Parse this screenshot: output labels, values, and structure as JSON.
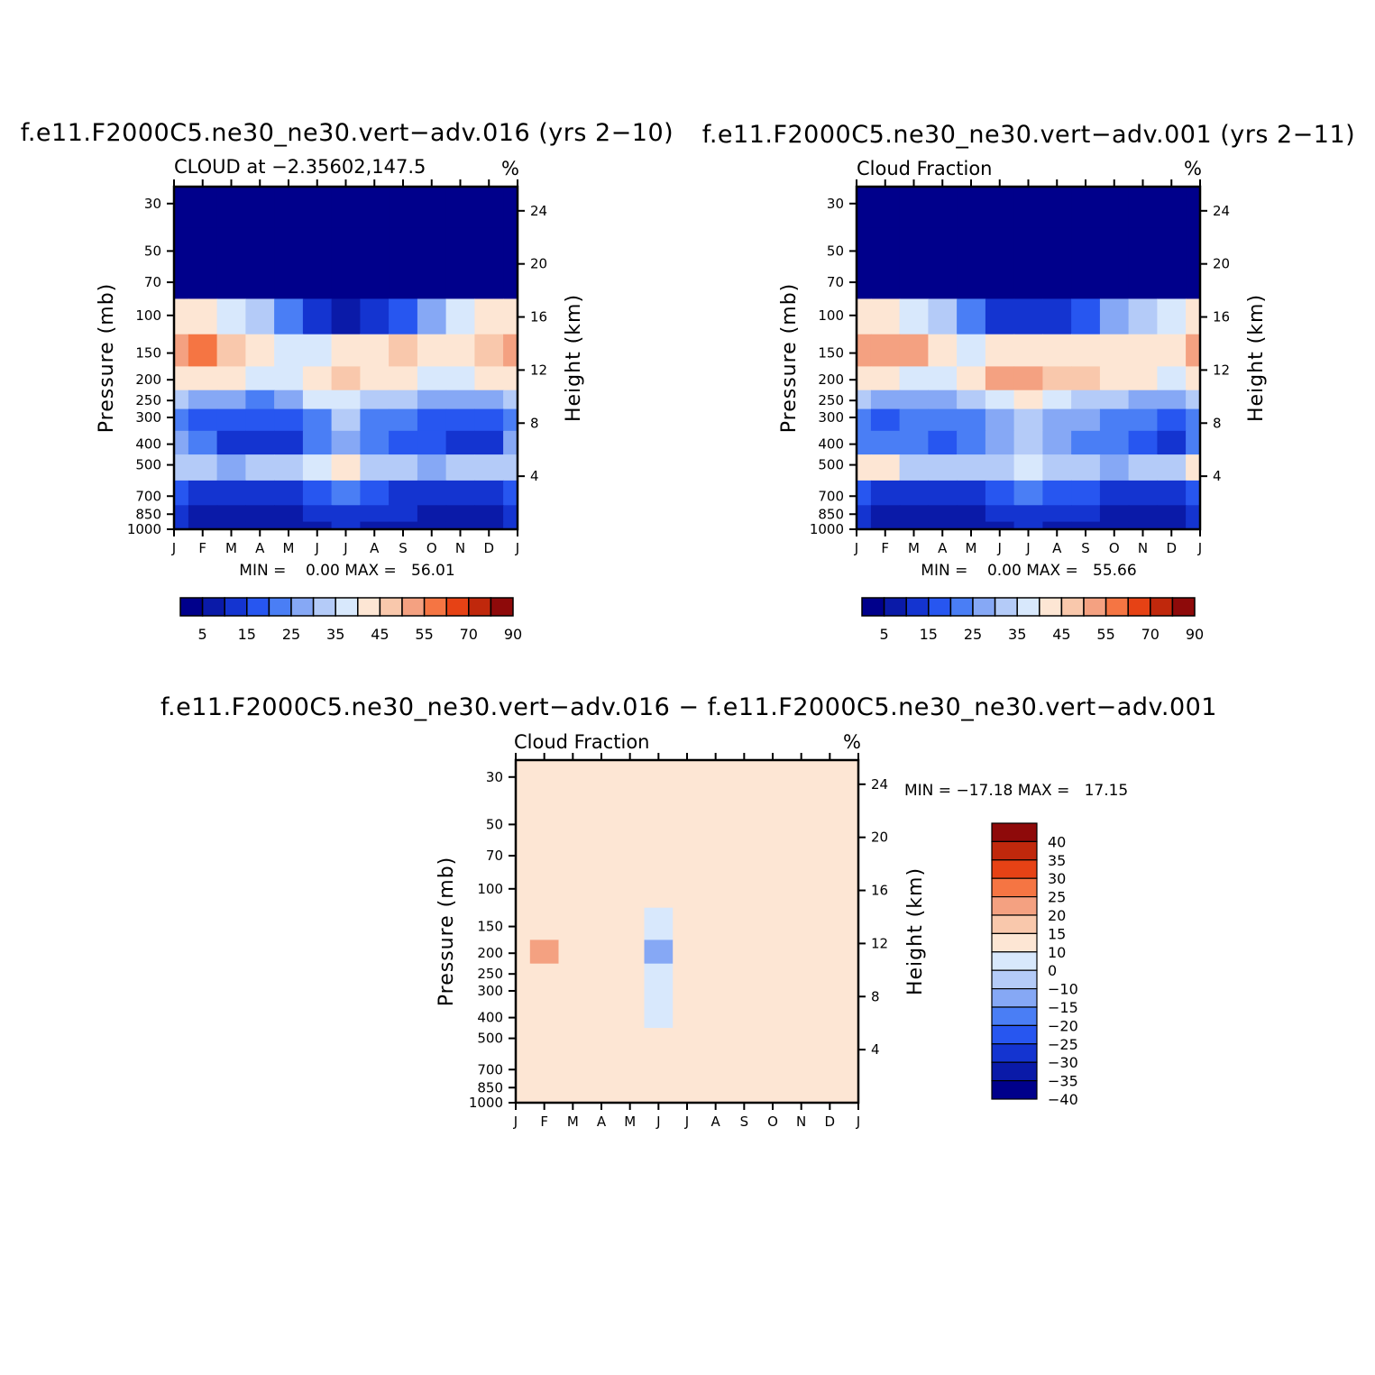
{
  "panels": [
    {
      "title": "f.e11.F2000C5.ne30_ne30.vert−adv.016 (yrs 2−10)",
      "left_string": "CLOUD at −2.35602,147.5",
      "right_string": "%",
      "minmax": "MIN =    0.00 MAX =   56.01"
    },
    {
      "title": "f.e11.F2000C5.ne30_ne30.vert−adv.001 (yrs 2−11)",
      "left_string": "Cloud Fraction",
      "right_string": "%",
      "minmax": "MIN =    0.00 MAX =   55.66"
    },
    {
      "title": "f.e11.F2000C5.ne30_ne30.vert−adv.016 − f.e11.F2000C5.ne30_ne30.vert−adv.001",
      "left_string": "Cloud Fraction",
      "right_string": "%",
      "minmax": "MIN = −17.18 MAX =   17.15"
    }
  ],
  "colors": {
    "abs_scale": [
      "#00008b",
      "#0a1aa8",
      "#1434d0",
      "#2756f0",
      "#4a7ef5",
      "#86a8f5",
      "#b4cbf8",
      "#d8e8fc",
      "#fde6d4",
      "#f9c8ac",
      "#f4a181",
      "#f57543",
      "#e64215",
      "#c0280c",
      "#8e0a0a"
    ],
    "diff_scale": [
      "#00008b",
      "#0a1aa8",
      "#1434d0",
      "#2756f0",
      "#4a7ef5",
      "#86a8f5",
      "#b4cbf8",
      "#d8e8fc",
      "#fde6d4",
      "#f9c8ac",
      "#f4a181",
      "#f57543",
      "#e64215",
      "#c0280c",
      "#8e0a0a"
    ]
  },
  "chart_data": [
    {
      "type": "heatmap",
      "title": "f.e11.F2000C5.ne30_ne30.vert−adv.016 (yrs 2−10)",
      "subtitle": "CLOUD at −2.35602,147.5",
      "units": "%",
      "xlabel": "",
      "ylabel": "Pressure (mb)",
      "y2label": "Height (km)",
      "x_ticks": [
        "J",
        "F",
        "M",
        "A",
        "M",
        "J",
        "J",
        "A",
        "S",
        "O",
        "N",
        "D",
        "J"
      ],
      "y_ticks": [
        30,
        50,
        70,
        100,
        150,
        200,
        250,
        300,
        400,
        500,
        700,
        850,
        1000
      ],
      "y2_ticks": [
        24,
        20,
        16,
        12,
        8,
        4
      ],
      "ylim": [
        1000,
        25
      ],
      "contour_levels": [
        5,
        10,
        15,
        20,
        25,
        30,
        35,
        40,
        45,
        50,
        55,
        60,
        70,
        80,
        90
      ],
      "colorbar_labels": [
        "5",
        "15",
        "25",
        "35",
        "45",
        "55",
        "70",
        "90"
      ],
      "min": 0.0,
      "max": 56.01,
      "levels": [
        30,
        50,
        70,
        100,
        150,
        200,
        250,
        300,
        400,
        500,
        700,
        850,
        1000
      ],
      "values": [
        [
          0,
          0,
          0,
          0,
          0,
          0,
          0,
          0,
          0,
          0,
          0,
          0,
          0
        ],
        [
          0,
          0,
          0,
          0,
          0,
          0,
          0,
          0,
          0,
          0,
          0,
          0,
          0
        ],
        [
          4,
          3,
          2,
          1,
          1,
          0,
          0,
          0,
          1,
          1,
          2,
          3,
          4
        ],
        [
          42,
          41,
          38,
          30,
          20,
          12,
          6,
          10,
          18,
          28,
          35,
          40,
          42
        ],
        [
          50,
          55,
          46,
          40,
          38,
          36,
          40,
          44,
          46,
          42,
          44,
          48,
          50
        ],
        [
          43,
          44,
          40,
          35,
          36,
          42,
          46,
          42,
          44,
          36,
          38,
          40,
          43
        ],
        [
          30,
          28,
          26,
          24,
          28,
          36,
          38,
          32,
          30,
          26,
          28,
          26,
          30
        ],
        [
          20,
          18,
          16,
          15,
          16,
          24,
          30,
          22,
          20,
          18,
          18,
          16,
          20
        ],
        [
          25,
          20,
          14,
          13,
          14,
          24,
          28,
          22,
          18,
          16,
          14,
          12,
          25
        ],
        [
          32,
          30,
          28,
          30,
          32,
          36,
          40,
          34,
          30,
          28,
          30,
          32,
          32
        ],
        [
          16,
          12,
          11,
          12,
          14,
          18,
          20,
          16,
          14,
          12,
          12,
          14,
          16
        ],
        [
          12,
          8,
          8,
          7,
          8,
          10,
          12,
          10,
          10,
          8,
          8,
          7,
          12
        ],
        [
          10,
          9,
          8,
          8,
          8,
          9,
          10,
          9,
          9,
          8,
          8,
          8,
          10
        ]
      ]
    },
    {
      "type": "heatmap",
      "title": "f.e11.F2000C5.ne30_ne30.vert−adv.001 (yrs 2−11)",
      "subtitle": "Cloud Fraction",
      "units": "%",
      "xlabel": "",
      "ylabel": "Pressure (mb)",
      "y2label": "Height (km)",
      "x_ticks": [
        "J",
        "F",
        "M",
        "A",
        "M",
        "J",
        "J",
        "A",
        "S",
        "O",
        "N",
        "D",
        "J"
      ],
      "y_ticks": [
        30,
        50,
        70,
        100,
        150,
        200,
        250,
        300,
        400,
        500,
        700,
        850,
        1000
      ],
      "y2_ticks": [
        24,
        20,
        16,
        12,
        8,
        4
      ],
      "ylim": [
        1000,
        25
      ],
      "contour_levels": [
        5,
        10,
        15,
        20,
        25,
        30,
        35,
        40,
        45,
        50,
        55,
        60,
        70,
        80,
        90
      ],
      "colorbar_labels": [
        "5",
        "15",
        "25",
        "35",
        "45",
        "55",
        "70",
        "90"
      ],
      "min": 0.0,
      "max": 55.66,
      "levels": [
        30,
        50,
        70,
        100,
        150,
        200,
        250,
        300,
        400,
        500,
        700,
        850,
        1000
      ],
      "values": [
        [
          0,
          0,
          0,
          0,
          0,
          0,
          0,
          0,
          0,
          0,
          0,
          0,
          0
        ],
        [
          0,
          0,
          0,
          0,
          0,
          0,
          0,
          0,
          0,
          0,
          0,
          0,
          0
        ],
        [
          4,
          3,
          2,
          1,
          1,
          0,
          0,
          0,
          1,
          1,
          2,
          3,
          4
        ],
        [
          40,
          40,
          37,
          30,
          22,
          14,
          10,
          12,
          18,
          26,
          34,
          38,
          40
        ],
        [
          50,
          52,
          50,
          44,
          38,
          40,
          42,
          42,
          44,
          44,
          42,
          40,
          50
        ],
        [
          40,
          42,
          38,
          36,
          44,
          50,
          52,
          48,
          46,
          44,
          40,
          38,
          40
        ],
        [
          30,
          28,
          28,
          26,
          30,
          38,
          40,
          36,
          34,
          30,
          28,
          28,
          30
        ],
        [
          22,
          18,
          20,
          22,
          24,
          28,
          30,
          28,
          26,
          24,
          22,
          18,
          22
        ],
        [
          24,
          20,
          22,
          18,
          20,
          26,
          30,
          28,
          24,
          20,
          18,
          14,
          24
        ],
        [
          44,
          40,
          32,
          30,
          32,
          34,
          38,
          34,
          30,
          28,
          30,
          34,
          44
        ],
        [
          18,
          14,
          12,
          12,
          14,
          18,
          20,
          18,
          16,
          12,
          12,
          14,
          18
        ],
        [
          12,
          8,
          8,
          8,
          9,
          10,
          12,
          12,
          10,
          8,
          8,
          8,
          12
        ],
        [
          10,
          9,
          8,
          8,
          8,
          9,
          10,
          9,
          9,
          8,
          8,
          8,
          10
        ]
      ]
    },
    {
      "type": "heatmap",
      "title": "f.e11.F2000C5.ne30_ne30.vert−adv.016 − f.e11.F2000C5.ne30_ne30.vert−adv.001",
      "subtitle": "Cloud Fraction",
      "units": "%",
      "xlabel": "",
      "ylabel": "Pressure (mb)",
      "y2label": "Height (km)",
      "x_ticks": [
        "J",
        "F",
        "M",
        "A",
        "M",
        "J",
        "J",
        "A",
        "S",
        "O",
        "N",
        "D",
        "J"
      ],
      "y_ticks": [
        30,
        50,
        70,
        100,
        150,
        200,
        250,
        300,
        400,
        500,
        700,
        850,
        1000
      ],
      "y2_ticks": [
        24,
        20,
        16,
        12,
        8,
        4
      ],
      "ylim": [
        1000,
        25
      ],
      "contour_levels": [
        -40,
        -35,
        -30,
        -25,
        -20,
        -15,
        -10,
        0,
        10,
        15,
        20,
        25,
        30,
        35,
        40
      ],
      "colorbar_labels": [
        "40",
        "35",
        "30",
        "25",
        "20",
        "15",
        "10",
        "0",
        "−10",
        "−15",
        "−20",
        "−25",
        "−30",
        "−35",
        "−40"
      ],
      "min": -17.18,
      "max": 17.15,
      "levels": [
        30,
        50,
        70,
        100,
        150,
        200,
        250,
        300,
        400,
        500,
        700,
        850,
        1000
      ],
      "values": [
        [
          0,
          0,
          0,
          0,
          0,
          0,
          0,
          3,
          0,
          3,
          3,
          3,
          3
        ],
        [
          0,
          1,
          0,
          0,
          0,
          0,
          0,
          1,
          0,
          0,
          1,
          1,
          1
        ],
        [
          0,
          1,
          0,
          0,
          0,
          0,
          0,
          0,
          0,
          0,
          1,
          1,
          1
        ],
        [
          1,
          2,
          0,
          0,
          0,
          0,
          0,
          0,
          0,
          0,
          1,
          2,
          1
        ],
        [
          2,
          6,
          1,
          0,
          0,
          -8,
          0,
          0,
          0,
          0,
          0,
          3,
          2
        ],
        [
          3,
          17,
          1,
          0,
          0,
          -17,
          0,
          0,
          0,
          0,
          0,
          3,
          3
        ],
        [
          1,
          5,
          0,
          0,
          0,
          -8,
          0,
          0,
          0,
          0,
          0,
          1,
          1
        ],
        [
          0,
          3,
          0,
          0,
          0,
          -5,
          0,
          0,
          0,
          0,
          0,
          0,
          0
        ],
        [
          0,
          2,
          0,
          0,
          0,
          -3,
          0,
          0,
          0,
          0,
          0,
          0,
          0
        ],
        [
          0,
          0,
          0,
          0,
          0,
          0,
          0,
          1,
          0,
          0,
          0,
          0,
          0
        ],
        [
          0,
          0,
          0,
          0,
          1,
          0,
          0,
          0,
          0,
          1,
          0,
          0,
          0
        ],
        [
          0,
          0,
          0,
          0,
          0,
          0,
          1,
          0,
          0,
          2,
          0,
          0,
          0
        ],
        [
          0,
          0,
          0,
          0,
          0,
          0,
          1,
          0,
          0,
          1,
          0,
          0,
          0
        ]
      ]
    }
  ]
}
